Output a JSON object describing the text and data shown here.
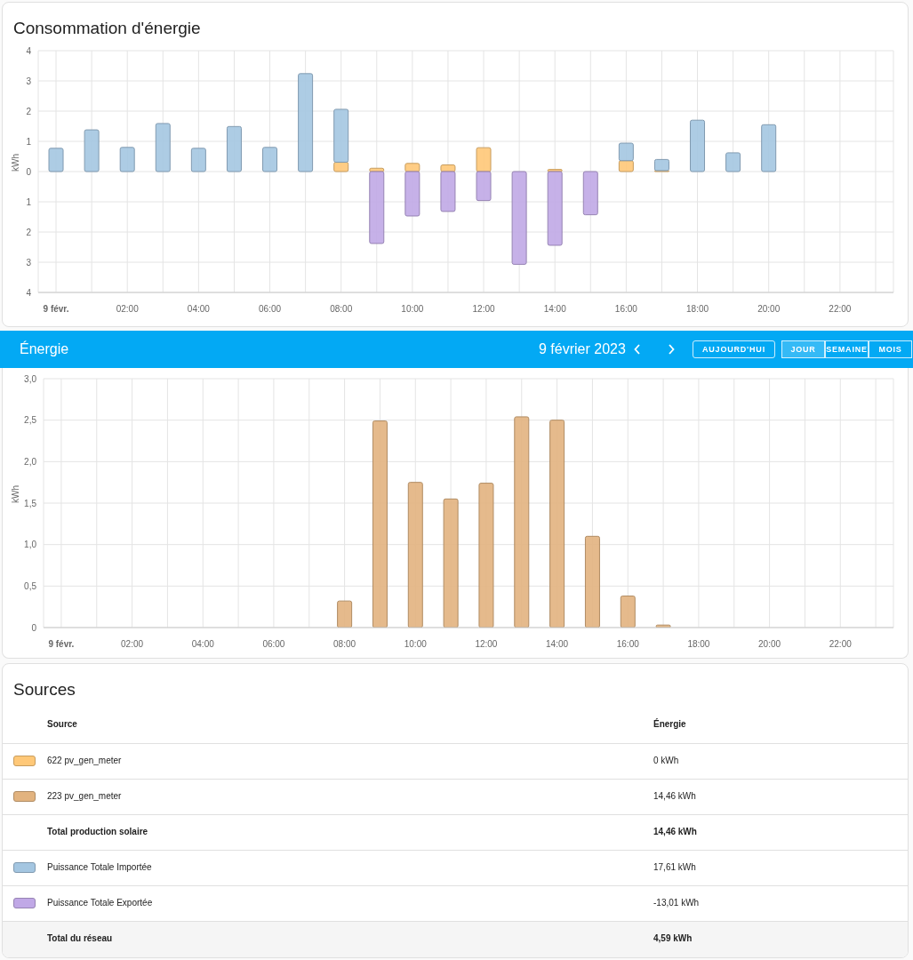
{
  "chart_data": [
    {
      "type": "bar",
      "title": "Consommation d'énergie",
      "ylabel": "kWh",
      "stacked": true,
      "grid": true,
      "categories": [
        "9 févr.",
        null,
        "02:00",
        null,
        "04:00",
        null,
        "06:00",
        null,
        "08:00",
        null,
        "10:00",
        null,
        "12:00",
        null,
        "14:00",
        null,
        "16:00",
        null,
        "18:00",
        null,
        "20:00",
        null,
        "22:00",
        null
      ],
      "series": [
        {
          "color": "#ffc878",
          "values": [
            null,
            null,
            null,
            null,
            null,
            null,
            null,
            null,
            0.31,
            0.11,
            0.27,
            0.22,
            0.79,
            null,
            0.07,
            null,
            0.36,
            0.03,
            null,
            null,
            null,
            null,
            null,
            null
          ]
        },
        {
          "color": "#a4c6e1",
          "values": [
            0.77,
            1.38,
            0.8,
            1.59,
            0.77,
            1.49,
            0.8,
            3.24,
            1.75,
            null,
            null,
            null,
            null,
            null,
            null,
            null,
            0.58,
            0.37,
            1.7,
            0.62,
            1.55,
            null,
            null,
            null
          ]
        },
        {
          "color": "#c0a8e6",
          "values": [
            null,
            null,
            null,
            null,
            null,
            null,
            null,
            null,
            null,
            -2.38,
            -1.47,
            -1.32,
            -0.96,
            -3.07,
            -2.44,
            -1.43,
            null,
            null,
            null,
            null,
            null,
            null,
            null,
            null
          ]
        }
      ],
      "ylim": [
        -4,
        4
      ],
      "yticks": [
        {
          "value": -4,
          "label": "4"
        },
        {
          "value": -3,
          "label": "3"
        },
        {
          "value": -2,
          "label": "2"
        },
        {
          "value": -1,
          "label": "1"
        },
        0,
        1,
        2,
        3,
        4
      ]
    },
    {
      "type": "bar",
      "title": "Énergie",
      "subtitle": "9 février 2023",
      "ylabel": "kWh",
      "grid": true,
      "annotations": [
        "AUJOURD'HUI",
        "JOUR",
        "SEMAINE",
        "MOIS"
      ],
      "categories": [
        "9 févr.",
        null,
        "02:00",
        null,
        "04:00",
        null,
        "06:00",
        null,
        "08:00",
        null,
        "10:00",
        null,
        "12:00",
        null,
        "14:00",
        null,
        "16:00",
        null,
        "18:00",
        null,
        "20:00",
        null,
        "22:00",
        null
      ],
      "series": [
        {
          "color": "#e2b37f",
          "values": [
            null,
            null,
            null,
            null,
            null,
            null,
            null,
            null,
            0.32,
            2.49,
            1.75,
            1.55,
            1.74,
            2.54,
            2.5,
            1.1,
            0.38,
            0.03,
            null,
            null,
            null,
            null,
            null,
            null
          ]
        }
      ],
      "ylim": [
        0,
        3
      ],
      "yticks": [
        0,
        {
          "value": 0.5,
          "label": "0,5"
        },
        {
          "value": 1,
          "label": "1,0"
        },
        {
          "value": 1.5,
          "label": "1,5"
        },
        {
          "value": 2,
          "label": "2,0"
        },
        {
          "value": 2.5,
          "label": "2,5"
        },
        {
          "value": 3,
          "label": "3,0"
        }
      ]
    },
    {
      "type": "other",
      "title": "Sources",
      "annotations": [
        "Source",
        "Énergie",
        "622 pv_gen_meter",
        "0 kWh",
        "223 pv_gen_meter",
        "14,46 kWh",
        "Total production solaire",
        "14,46 kWh",
        "Puissance Totale Importée",
        "17,61 kWh",
        "Puissance Totale Exportée",
        "-13,01 kWh",
        "Total du réseau",
        "4,59 kWh"
      ],
      "colors": [
        "#ffc878",
        "#e2b37f",
        null,
        "#a4c6e1",
        "#c0a8e6",
        null
      ]
    }
  ]
}
